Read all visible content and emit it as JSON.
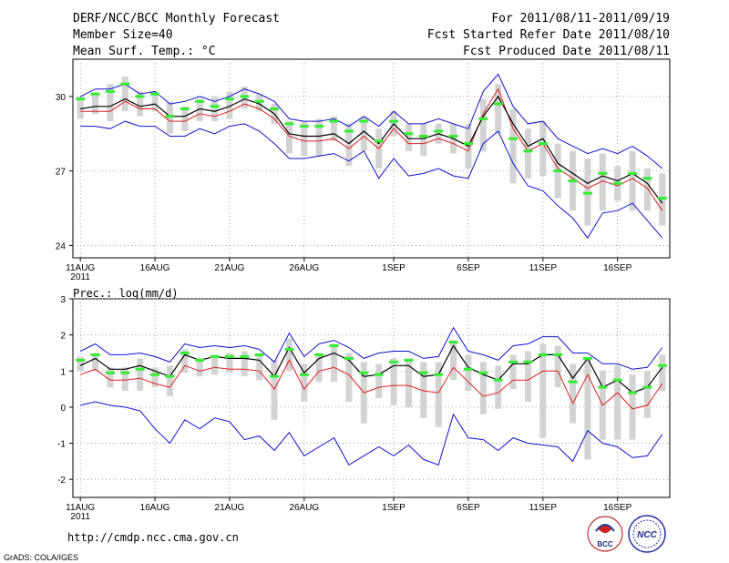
{
  "header": {
    "title": "DERF/NCC/BCC Monthly Forecast",
    "member_size": "Member Size=40",
    "variable": "Mean Surf. Temp.: °C",
    "period": "For 2011/08/11-2011/09/19",
    "refer_date": "Fcst Started Refer Date 2011/08/10",
    "produced_date": "Fcst Produced Date 2011/08/11"
  },
  "footer": {
    "url": "http://cmdp.ncc.cma.gov.cn",
    "credit": "GrADS: COLA/IGES",
    "logo_bcc_text": "BCC",
    "logo_ncc_text": "NCC"
  },
  "colors": {
    "bar": "#d3d3d3",
    "ensemble_mean": "#000000",
    "red_line": "#e02020",
    "envelope": "#1010d0",
    "green_marker": "#33ee33",
    "grid": "#888888"
  },
  "chart_data": [
    {
      "type": "line",
      "title": "Mean Surf. Temp.: °C",
      "xlabel": "",
      "ylabel": "",
      "x_tick_labels": [
        "11AUG",
        "16AUG",
        "21AUG",
        "26AUG",
        "1SEP",
        "6SEP",
        "11SEP",
        "16SEP"
      ],
      "x_tick_days": [
        1,
        6,
        11,
        16,
        22,
        27,
        32,
        37
      ],
      "year_label": "2011",
      "ylim": [
        23.5,
        31.5
      ],
      "y_ticks": [
        24,
        27,
        30
      ],
      "y_tick_labels": [
        "24",
        "27",
        "30"
      ],
      "x": [
        1,
        2,
        3,
        4,
        5,
        6,
        7,
        8,
        9,
        10,
        11,
        12,
        13,
        14,
        15,
        16,
        17,
        18,
        19,
        20,
        21,
        22,
        23,
        24,
        25,
        26,
        27,
        28,
        29,
        30,
        31,
        32,
        33,
        34,
        35,
        36,
        37,
        38,
        39,
        40
      ],
      "series": [
        {
          "name": "ensemble mean",
          "values": [
            29.5,
            29.6,
            29.6,
            29.9,
            29.6,
            29.7,
            29.2,
            29.2,
            29.5,
            29.4,
            29.6,
            29.9,
            29.7,
            29.3,
            28.5,
            28.4,
            28.4,
            28.5,
            28.1,
            28.6,
            28.1,
            28.9,
            28.3,
            28.3,
            28.5,
            28.3,
            28.0,
            29.2,
            30.0,
            28.9,
            28.0,
            28.3,
            27.3,
            26.9,
            26.5,
            26.8,
            26.6,
            26.9,
            26.5,
            25.7
          ]
        },
        {
          "name": "red",
          "values": [
            29.4,
            29.4,
            29.4,
            29.8,
            29.5,
            29.5,
            29.0,
            29.0,
            29.3,
            29.2,
            29.4,
            29.7,
            29.5,
            29.1,
            28.4,
            28.2,
            28.2,
            28.3,
            27.9,
            28.4,
            27.9,
            28.7,
            28.1,
            28.1,
            28.3,
            28.1,
            27.8,
            29.3,
            30.3,
            28.7,
            27.8,
            28.1,
            27.1,
            26.7,
            26.3,
            26.6,
            26.4,
            26.7,
            26.3,
            25.4
          ]
        },
        {
          "name": "envelope upper",
          "values": [
            30.0,
            30.3,
            30.3,
            30.5,
            30.1,
            30.2,
            29.7,
            29.8,
            30.0,
            29.8,
            30.0,
            30.3,
            30.1,
            29.8,
            29.1,
            29.0,
            29.0,
            29.1,
            28.8,
            29.2,
            28.8,
            29.4,
            28.9,
            28.9,
            29.1,
            28.9,
            28.7,
            30.2,
            30.9,
            29.6,
            28.9,
            29.0,
            28.3,
            28.0,
            27.7,
            27.9,
            27.7,
            28.0,
            27.6,
            27.1
          ]
        },
        {
          "name": "envelope lower",
          "values": [
            28.8,
            28.8,
            28.7,
            29.0,
            28.8,
            28.8,
            28.4,
            28.4,
            28.7,
            28.5,
            28.8,
            28.9,
            28.6,
            28.1,
            27.5,
            27.5,
            27.6,
            27.7,
            27.4,
            27.8,
            26.7,
            27.5,
            26.8,
            26.9,
            27.1,
            26.8,
            26.7,
            28.1,
            28.6,
            27.3,
            26.4,
            26.2,
            25.6,
            25.1,
            24.3,
            25.3,
            25.4,
            25.7,
            25.0,
            24.3
          ]
        },
        {
          "name": "green markers",
          "values": [
            29.9,
            30.1,
            30.2,
            30.5,
            30.0,
            30.1,
            29.2,
            29.5,
            29.8,
            29.6,
            29.9,
            30.0,
            29.8,
            29.5,
            28.9,
            28.8,
            28.8,
            29.0,
            28.6,
            29.0,
            28.2,
            29.0,
            28.5,
            28.4,
            28.6,
            28.4,
            28.1,
            29.1,
            29.7,
            28.3,
            27.8,
            28.1,
            27.0,
            26.6,
            26.1,
            26.9,
            26.5,
            26.9,
            26.7,
            25.9
          ]
        },
        {
          "name": "bar top",
          "values": [
            30.0,
            30.1,
            30.5,
            30.8,
            30.2,
            30.2,
            29.8,
            29.6,
            29.9,
            30.0,
            30.2,
            30.4,
            30.1,
            29.7,
            29.0,
            29.0,
            29.1,
            29.2,
            28.9,
            29.2,
            28.7,
            29.4,
            28.9,
            28.9,
            28.9,
            28.9,
            28.9,
            29.9,
            30.5,
            29.5,
            28.7,
            29.0,
            28.1,
            27.8,
            27.5,
            27.7,
            27.2,
            27.8,
            27.1,
            26.9
          ]
        },
        {
          "name": "bar bottom",
          "values": [
            29.1,
            29.3,
            29.0,
            29.4,
            29.2,
            29.4,
            28.5,
            28.6,
            29.0,
            29.0,
            29.1,
            29.5,
            29.4,
            28.9,
            27.7,
            27.6,
            27.6,
            28.2,
            27.2,
            27.8,
            27.1,
            28.4,
            27.8,
            27.6,
            28.1,
            27.7,
            27.1,
            27.8,
            28.5,
            26.5,
            26.7,
            26.8,
            25.9,
            25.4,
            24.8,
            25.4,
            25.8,
            25.4,
            25.4,
            24.8
          ]
        }
      ]
    },
    {
      "type": "line",
      "title": "Prec.: log(mm/d)",
      "xlabel": "",
      "ylabel": "",
      "x_tick_labels": [
        "11AUG",
        "16AUG",
        "21AUG",
        "26AUG",
        "1SEP",
        "6SEP",
        "11SEP",
        "16SEP"
      ],
      "x_tick_days": [
        1,
        6,
        11,
        16,
        22,
        27,
        32,
        37
      ],
      "year_label": "2011",
      "ylim": [
        -2.5,
        3
      ],
      "y_ticks": [
        -2,
        -1,
        0,
        1,
        2,
        3
      ],
      "y_tick_labels": [
        "-2",
        "-1",
        "0",
        "1",
        "2",
        "3"
      ],
      "x": [
        1,
        2,
        3,
        4,
        5,
        6,
        7,
        8,
        9,
        10,
        11,
        12,
        13,
        14,
        15,
        16,
        17,
        18,
        19,
        20,
        21,
        22,
        23,
        24,
        25,
        26,
        27,
        28,
        29,
        30,
        31,
        32,
        33,
        34,
        35,
        36,
        37,
        38,
        39,
        40
      ],
      "series": [
        {
          "name": "ensemble mean",
          "values": [
            1.15,
            1.35,
            1.05,
            1.05,
            1.15,
            1.0,
            0.85,
            1.45,
            1.3,
            1.4,
            1.35,
            1.35,
            1.3,
            0.85,
            1.65,
            0.95,
            1.35,
            1.5,
            1.3,
            0.85,
            0.9,
            1.15,
            1.15,
            0.85,
            0.9,
            1.7,
            1.1,
            0.9,
            0.75,
            1.2,
            1.2,
            1.45,
            1.45,
            0.8,
            1.35,
            0.55,
            0.75,
            0.4,
            0.55,
            1.1
          ]
        },
        {
          "name": "red",
          "values": [
            0.9,
            1.05,
            0.75,
            0.75,
            0.8,
            0.65,
            0.55,
            1.15,
            1.0,
            1.1,
            1.05,
            1.05,
            1.0,
            0.5,
            1.3,
            0.5,
            1.0,
            1.1,
            0.9,
            0.4,
            0.55,
            0.6,
            0.6,
            0.45,
            0.4,
            1.1,
            0.7,
            0.3,
            0.4,
            0.75,
            0.75,
            1.0,
            1.0,
            0.1,
            0.9,
            0.05,
            0.4,
            -0.05,
            0.05,
            0.65
          ]
        },
        {
          "name": "envelope upper",
          "values": [
            1.55,
            1.75,
            1.45,
            1.45,
            1.5,
            1.4,
            1.25,
            1.75,
            1.65,
            1.7,
            1.65,
            1.7,
            1.6,
            1.25,
            2.05,
            1.4,
            1.75,
            1.85,
            1.65,
            1.35,
            1.5,
            1.55,
            1.55,
            1.35,
            1.4,
            2.2,
            1.55,
            1.45,
            1.3,
            1.7,
            1.75,
            1.95,
            1.95,
            1.5,
            1.5,
            1.2,
            1.2,
            1.05,
            1.1,
            1.65
          ]
        },
        {
          "name": "envelope lower",
          "values": [
            0.05,
            0.15,
            0.05,
            0.0,
            -0.1,
            -0.6,
            -1.0,
            -0.35,
            -0.6,
            -0.3,
            -0.4,
            -0.9,
            -0.8,
            -1.2,
            -0.7,
            -1.35,
            -1.1,
            -0.85,
            -1.6,
            -1.35,
            -1.1,
            -1.35,
            -1.05,
            -1.45,
            -1.6,
            -0.2,
            -0.85,
            -0.9,
            -1.2,
            -0.85,
            -1.0,
            -1.05,
            -1.1,
            -1.5,
            -0.65,
            -1.0,
            -1.1,
            -1.4,
            -1.35,
            -0.75
          ]
        },
        {
          "name": "green markers",
          "values": [
            1.3,
            1.45,
            0.95,
            0.95,
            1.05,
            0.9,
            0.85,
            1.5,
            1.3,
            1.4,
            1.4,
            1.4,
            1.45,
            0.85,
            1.6,
            0.9,
            1.45,
            1.7,
            1.35,
            0.95,
            0.9,
            1.25,
            1.3,
            0.95,
            0.9,
            1.8,
            1.05,
            0.95,
            0.75,
            1.25,
            1.25,
            1.45,
            1.45,
            0.7,
            1.35,
            0.55,
            0.75,
            0.4,
            0.55,
            1.15
          ]
        },
        {
          "name": "bar top",
          "values": [
            1.4,
            1.5,
            1.1,
            1.1,
            1.35,
            1.1,
            1.15,
            1.6,
            1.35,
            1.45,
            1.5,
            1.55,
            1.5,
            1.3,
            1.9,
            1.2,
            1.5,
            1.75,
            1.5,
            1.25,
            1.2,
            1.35,
            1.35,
            1.25,
            1.25,
            1.85,
            1.45,
            1.25,
            1.15,
            1.45,
            1.55,
            1.75,
            1.7,
            1.2,
            1.35,
            1.0,
            1.15,
            0.9,
            1.0,
            1.45
          ]
        },
        {
          "name": "bar bottom",
          "values": [
            1.0,
            1.0,
            0.55,
            0.45,
            0.45,
            0.55,
            0.3,
            0.95,
            0.85,
            0.9,
            0.95,
            0.85,
            0.75,
            -0.35,
            1.0,
            0.15,
            0.7,
            0.7,
            0.15,
            -0.45,
            0.25,
            0.05,
            0.0,
            -0.3,
            -0.55,
            0.75,
            0.45,
            -0.2,
            -0.05,
            0.5,
            0.15,
            -0.85,
            0.55,
            -0.45,
            -1.45,
            -0.9,
            -0.9,
            -0.9,
            -0.3,
            0.45
          ]
        }
      ]
    }
  ]
}
